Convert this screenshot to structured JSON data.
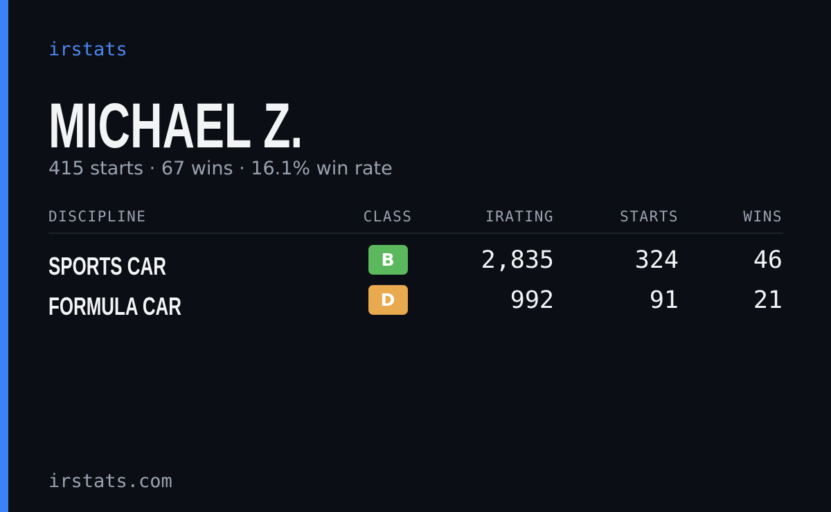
{
  "brand": "irstats",
  "driver": {
    "name": "MICHAEL Z.",
    "summary": "415 starts · 67 wins · 16.1% win rate"
  },
  "table": {
    "headers": [
      "DISCIPLINE",
      "CLASS",
      "IRATING",
      "STARTS",
      "WINS"
    ],
    "rows": [
      {
        "discipline": "SPORTS CAR",
        "class": "B",
        "badge_color": "#5cb85c",
        "irating": "2,835",
        "starts": "324",
        "wins": "46"
      },
      {
        "discipline": "FORMULA CAR",
        "class": "D",
        "badge_color": "#e8a94f",
        "irating": "992",
        "starts": "91",
        "wins": "21"
      }
    ]
  },
  "footer": "irstats.com"
}
